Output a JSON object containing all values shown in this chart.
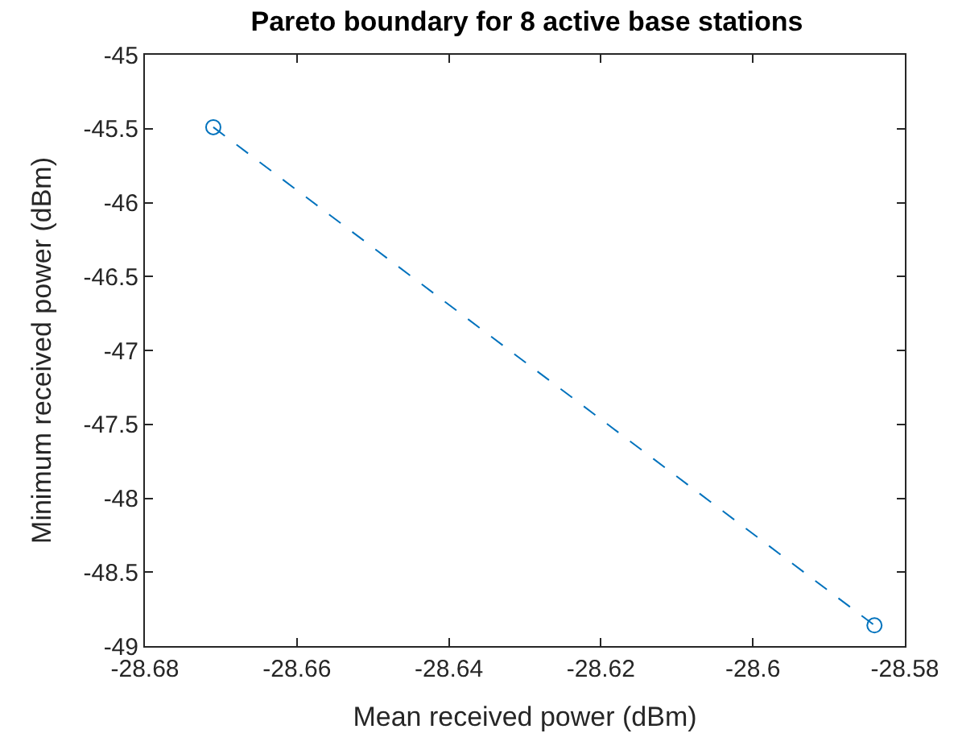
{
  "chart_data": {
    "type": "line",
    "title": "Pareto boundary for 8 active base stations",
    "xlabel": "Mean received power (dBm)",
    "ylabel": "Minimum received power (dBm)",
    "series": [
      {
        "color": "#0072bd",
        "x": [
          -28.671,
          -28.584
        ],
        "values": [
          -45.49,
          -48.86
        ]
      }
    ],
    "xlim": [
      -28.68,
      -28.58
    ],
    "xticks": [
      -28.68,
      -28.66,
      -28.64,
      -28.62,
      -28.6,
      -28.58
    ],
    "ylim": [
      -49,
      -45
    ],
    "yticks": [
      -49,
      -48.5,
      -48,
      -47.5,
      -47,
      -46.5,
      -46,
      -45.5,
      -45
    ],
    "marker": "circle",
    "line_style": "dashed",
    "legend": false
  }
}
